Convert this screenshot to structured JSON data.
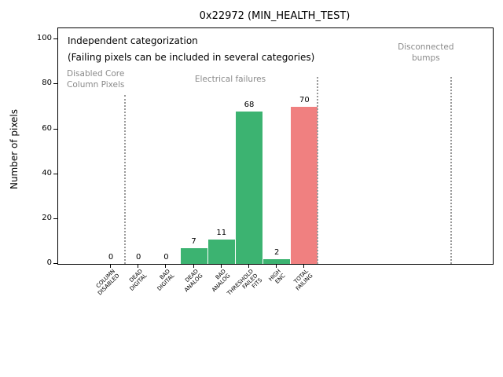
{
  "chart_data": {
    "type": "bar",
    "title": "0x22972 (MIN_HEALTH_TEST)",
    "ylabel": "Number of pixels",
    "ylim": [
      0,
      105
    ],
    "yticks": [
      0,
      20,
      40,
      60,
      80,
      100
    ],
    "grid": false,
    "legend": null,
    "categories": [
      {
        "lines": [
          "COLUMN",
          "DISABLED"
        ],
        "value": 0,
        "color": "green"
      },
      {
        "lines": [
          "DEAD",
          "DIGITAL"
        ],
        "value": 0,
        "color": "green"
      },
      {
        "lines": [
          "BAD",
          "DIGITAL"
        ],
        "value": 0,
        "color": "green"
      },
      {
        "lines": [
          "DEAD",
          "ANALOG"
        ],
        "value": 7,
        "color": "green"
      },
      {
        "lines": [
          "BAD",
          "ANALOG"
        ],
        "value": 11,
        "color": "green"
      },
      {
        "lines": [
          "THRESHOLD",
          "FAILED",
          "FITS"
        ],
        "value": 68,
        "color": "green"
      },
      {
        "lines": [
          "HIGH",
          "ENC"
        ],
        "value": 2,
        "color": "green"
      },
      {
        "lines": [
          "TOTAL",
          "FAILING"
        ],
        "value": 70,
        "color": "red"
      }
    ],
    "colors": {
      "green": "#3cb371",
      "red": "#f08080",
      "gray_text": "#8a8a8a"
    },
    "annotations": {
      "note_line1": "Independent categorization",
      "note_line2": "(Failing pixels can be included in several categories)",
      "regions": [
        {
          "lines": [
            "Disabled Core",
            "Column Pixels"
          ],
          "align": "left",
          "x_frac": 0.02,
          "top": 52
        },
        {
          "lines": [
            "Electrical failures"
          ],
          "align": "center",
          "x_frac": 0.396,
          "top": 59
        },
        {
          "lines": [
            "Disconnected",
            "bumps"
          ],
          "align": "center",
          "x_frac": 0.846,
          "top": 18
        }
      ]
    },
    "separators": [
      {
        "x_frac": 0.153,
        "top": 85
      },
      {
        "x_frac": 0.596,
        "top": 62
      },
      {
        "x_frac": 0.904,
        "top": 62
      }
    ]
  }
}
